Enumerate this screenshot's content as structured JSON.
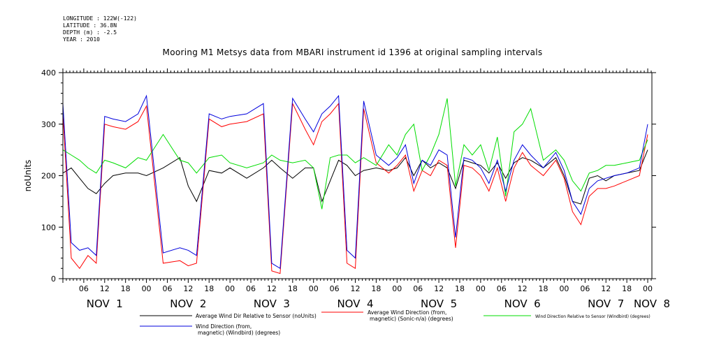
{
  "header": {
    "longitude": "LONGITUDE : 122W(-122)",
    "latitude": "LATITUDE : 36.8N",
    "depth": "DEPTH (m) : -2.5",
    "year": "YEAR : 2010"
  },
  "chart_data": {
    "type": "line",
    "title": "Mooring M1 Metsys data from MBARI instrument id 1396 at original sampling intervals",
    "ylabel": "noUnits",
    "ylim": [
      0,
      400
    ],
    "yticks": [
      "0",
      "100",
      "200",
      "300",
      "400"
    ],
    "xlim": [
      0,
      7.0
    ],
    "hour_labels": [
      "06",
      "12",
      "18",
      "00",
      "06",
      "12",
      "18",
      "00",
      "06",
      "12",
      "18",
      "00",
      "06",
      "12",
      "18",
      "00",
      "06",
      "12",
      "18",
      "00",
      "06",
      "12",
      "18",
      "00",
      "06",
      "12",
      "18",
      "00",
      "06",
      "12",
      "18",
      "00"
    ],
    "day_labels": [
      {
        "label": "NOV  1",
        "x": 0.5
      },
      {
        "label": "NOV  2",
        "x": 1.5
      },
      {
        "label": "NOV  3",
        "x": 2.5
      },
      {
        "label": "NOV  4",
        "x": 3.5
      },
      {
        "label": "NOV  5",
        "x": 4.5
      },
      {
        "label": "NOV  6",
        "x": 5.5
      },
      {
        "label": "NOV  7",
        "x": 6.5
      },
      {
        "label": "NOV  8",
        "x": 7.05
      }
    ],
    "series": [
      {
        "name": "Average Wind Dir Relative to Sensor (noUnits)",
        "color": "#000000",
        "x": [
          0.0,
          0.1,
          0.2,
          0.3,
          0.4,
          0.5,
          0.6,
          0.75,
          0.9,
          1.0,
          1.2,
          1.4,
          1.5,
          1.6,
          1.75,
          1.9,
          2.0,
          2.2,
          2.4,
          2.5,
          2.6,
          2.75,
          2.9,
          3.0,
          3.1,
          3.2,
          3.3,
          3.4,
          3.5,
          3.6,
          3.75,
          3.9,
          4.0,
          4.1,
          4.2,
          4.3,
          4.4,
          4.5,
          4.6,
          4.7,
          4.8,
          4.9,
          5.0,
          5.1,
          5.2,
          5.3,
          5.4,
          5.5,
          5.6,
          5.75,
          5.9,
          6.0,
          6.1,
          6.2,
          6.3,
          6.4,
          6.5,
          6.6,
          6.75,
          6.9,
          7.0
        ],
        "values": [
          205,
          215,
          195,
          175,
          165,
          185,
          200,
          205,
          205,
          200,
          215,
          235,
          180,
          150,
          210,
          205,
          215,
          195,
          215,
          230,
          215,
          195,
          215,
          215,
          150,
          190,
          230,
          220,
          200,
          210,
          215,
          210,
          215,
          235,
          200,
          230,
          215,
          225,
          215,
          175,
          230,
          225,
          220,
          205,
          225,
          195,
          225,
          235,
          230,
          215,
          235,
          200,
          150,
          145,
          195,
          200,
          190,
          200,
          205,
          210,
          250
        ]
      },
      {
        "name": "Average Wind Direction (from, magnetic) (Sonic-n/a) (degrees)",
        "color": "#ff0000",
        "x": [
          0.0,
          0.1,
          0.2,
          0.3,
          0.4,
          0.5,
          0.6,
          0.75,
          0.9,
          1.0,
          1.2,
          1.4,
          1.5,
          1.6,
          1.75,
          1.9,
          2.0,
          2.2,
          2.4,
          2.5,
          2.6,
          2.75,
          2.9,
          3.0,
          3.1,
          3.2,
          3.3,
          3.4,
          3.5,
          3.6,
          3.75,
          3.9,
          4.0,
          4.1,
          4.2,
          4.3,
          4.4,
          4.5,
          4.6,
          4.7,
          4.8,
          4.9,
          5.0,
          5.1,
          5.2,
          5.3,
          5.4,
          5.5,
          5.6,
          5.75,
          5.9,
          6.0,
          6.1,
          6.2,
          6.3,
          6.4,
          6.5,
          6.6,
          6.75,
          6.9,
          7.0
        ],
        "values": [
          320,
          40,
          20,
          45,
          30,
          300,
          295,
          290,
          305,
          335,
          30,
          35,
          25,
          30,
          310,
          295,
          300,
          305,
          320,
          15,
          10,
          340,
          290,
          260,
          305,
          320,
          340,
          30,
          20,
          330,
          225,
          205,
          220,
          240,
          170,
          210,
          200,
          230,
          220,
          60,
          220,
          215,
          200,
          170,
          215,
          150,
          215,
          245,
          220,
          200,
          230,
          195,
          130,
          105,
          160,
          175,
          175,
          180,
          190,
          200,
          280
        ]
      },
      {
        "name": "Wind Direction Relative to Sensor (Windbird) (degrees)",
        "color": "#00dd00",
        "x": [
          0.0,
          0.1,
          0.2,
          0.3,
          0.4,
          0.5,
          0.6,
          0.75,
          0.9,
          1.0,
          1.2,
          1.4,
          1.5,
          1.6,
          1.75,
          1.9,
          2.0,
          2.2,
          2.4,
          2.5,
          2.6,
          2.75,
          2.9,
          3.0,
          3.1,
          3.2,
          3.3,
          3.4,
          3.5,
          3.6,
          3.75,
          3.9,
          4.0,
          4.1,
          4.2,
          4.3,
          4.4,
          4.5,
          4.6,
          4.7,
          4.8,
          4.9,
          5.0,
          5.1,
          5.2,
          5.3,
          5.4,
          5.5,
          5.6,
          5.75,
          5.9,
          6.0,
          6.1,
          6.2,
          6.3,
          6.4,
          6.5,
          6.6,
          6.75,
          6.9,
          7.0
        ],
        "values": [
          250,
          240,
          230,
          215,
          205,
          230,
          225,
          215,
          235,
          230,
          280,
          230,
          225,
          205,
          235,
          240,
          225,
          215,
          225,
          240,
          230,
          225,
          230,
          215,
          135,
          235,
          240,
          240,
          225,
          235,
          220,
          260,
          240,
          280,
          300,
          210,
          240,
          280,
          350,
          180,
          260,
          240,
          260,
          210,
          275,
          160,
          285,
          300,
          330,
          230,
          250,
          230,
          190,
          170,
          205,
          210,
          220,
          220,
          225,
          230,
          270
        ]
      },
      {
        "name": "Wind Direction (from, magnetic) (Windbird) (degrees)",
        "color": "#0000dd",
        "x": [
          0.0,
          0.1,
          0.2,
          0.3,
          0.4,
          0.5,
          0.6,
          0.75,
          0.9,
          1.0,
          1.2,
          1.4,
          1.5,
          1.6,
          1.75,
          1.9,
          2.0,
          2.2,
          2.4,
          2.5,
          2.6,
          2.75,
          2.9,
          3.0,
          3.1,
          3.2,
          3.3,
          3.4,
          3.5,
          3.6,
          3.75,
          3.9,
          4.0,
          4.1,
          4.2,
          4.3,
          4.4,
          4.5,
          4.6,
          4.7,
          4.8,
          4.9,
          5.0,
          5.1,
          5.2,
          5.3,
          5.4,
          5.5,
          5.6,
          5.75,
          5.9,
          6.0,
          6.1,
          6.2,
          6.3,
          6.4,
          6.5,
          6.6,
          6.75,
          6.9,
          7.0
        ],
        "values": [
          340,
          70,
          55,
          60,
          45,
          315,
          310,
          305,
          320,
          355,
          50,
          60,
          55,
          45,
          320,
          310,
          315,
          320,
          340,
          30,
          20,
          350,
          310,
          285,
          320,
          335,
          355,
          55,
          40,
          345,
          240,
          220,
          235,
          260,
          185,
          230,
          220,
          250,
          240,
          80,
          235,
          230,
          215,
          185,
          230,
          170,
          230,
          260,
          240,
          215,
          245,
          210,
          150,
          125,
          175,
          190,
          195,
          200,
          205,
          215,
          300
        ]
      }
    ],
    "legend": [
      {
        "label": "Average Wind Dir Relative to Sensor (noUnits)",
        "color": "#000000"
      },
      {
        "label": "Average Wind Direction (from,\nmagnetic) (Sonic-n/a) (degrees)",
        "color": "#ff0000"
      },
      {
        "label": "Wind Direction Relative to Sensor (Windbird) (degrees)",
        "color": "#00dd00"
      },
      {
        "label": "Wind Direction (from,\nmagnetic) (Windbird) (degrees)",
        "color": "#0000dd"
      }
    ],
    "legend_placement": "bottom",
    "grid": false
  }
}
